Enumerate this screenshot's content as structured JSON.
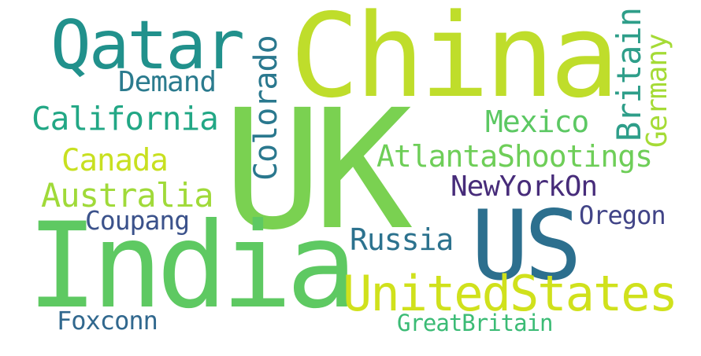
{
  "words": {
    "china": {
      "text": "China",
      "color": "#bfdd2b"
    },
    "uk": {
      "text": "UK",
      "color": "#7ad151"
    },
    "india": {
      "text": "India",
      "color": "#5ec962"
    },
    "us": {
      "text": "US",
      "color": "#2c6f8e"
    },
    "qatar": {
      "text": "Qatar",
      "color": "#21918c"
    },
    "unitedstates": {
      "text": "UnitedStates",
      "color": "#d0e11c"
    },
    "atlantashootings": {
      "text": "AtlantaShootings",
      "color": "#6ece58"
    },
    "california": {
      "text": "California",
      "color": "#22a785"
    },
    "australia": {
      "text": "Australia",
      "color": "#a0da39"
    },
    "colorado": {
      "text": "Colorado",
      "color": "#2a788e"
    },
    "britain": {
      "text": "Britain",
      "color": "#2e9e89"
    },
    "germany": {
      "text": "Germany",
      "color": "#a5db36"
    },
    "mexico": {
      "text": "Mexico",
      "color": "#5cc863"
    },
    "canada": {
      "text": "Canada",
      "color": "#c8e020"
    },
    "demand": {
      "text": "Demand",
      "color": "#2b7b8e"
    },
    "newyorkon": {
      "text": "NewYorkOn",
      "color": "#472c7a"
    },
    "russia": {
      "text": "Russia",
      "color": "#2c728e"
    },
    "coupang": {
      "text": "Coupang",
      "color": "#3b528b"
    },
    "oregon": {
      "text": "Oregon",
      "color": "#414487"
    },
    "foxconn": {
      "text": "Foxconn",
      "color": "#31688e"
    },
    "greatbritain": {
      "text": "GreatBritain",
      "color": "#3bbb75"
    }
  }
}
